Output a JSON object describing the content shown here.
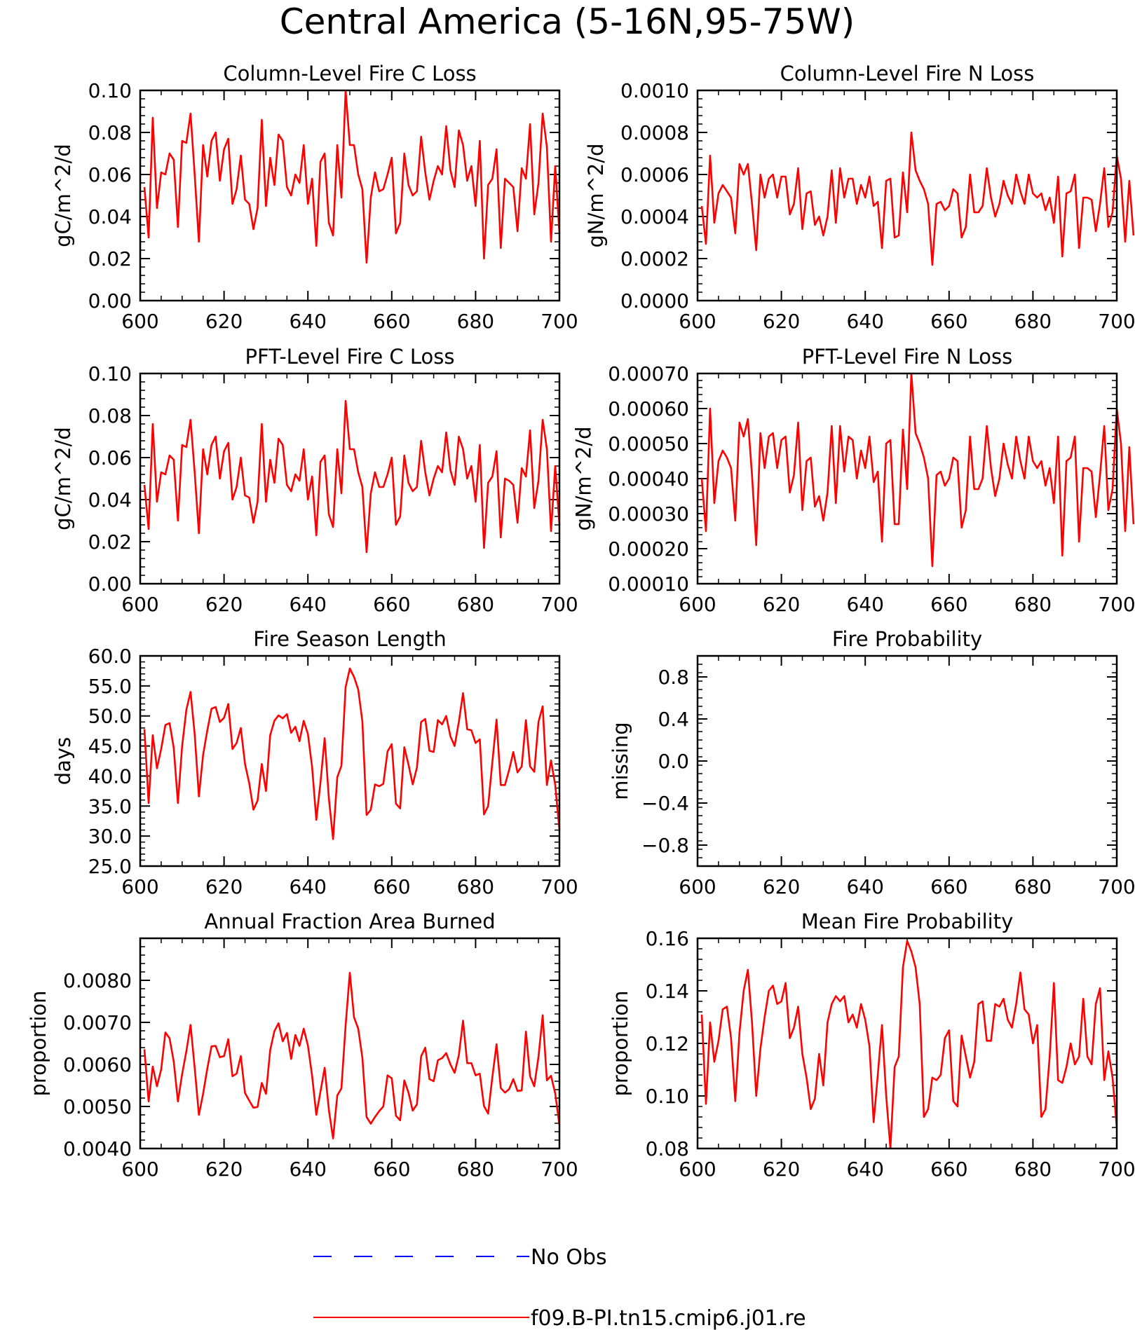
{
  "figure": {
    "title": "Central America (5-16N,95-75W)",
    "line_color": "#ff0000",
    "obs_color": "#0000ff"
  },
  "legend": [
    {
      "name": "No Obs",
      "style": "dashed",
      "color": "#0000ff"
    },
    {
      "name": "f09.B-PI.tn15.cmip6.j01.re",
      "style": "solid",
      "color": "#ff0000"
    }
  ],
  "chart_data": [
    {
      "type": "line",
      "title": "Column-Level Fire C Loss",
      "ylabel": "gC/m^2/d",
      "xlim": [
        600,
        700
      ],
      "ylim": [
        0,
        0.1
      ],
      "xticks": [
        "600",
        "620",
        "640",
        "660",
        "680",
        "700"
      ],
      "yticks": [
        "0.00",
        "0.02",
        "0.04",
        "0.06",
        "0.08",
        "0.10"
      ],
      "x_start": 601,
      "series": [
        {
          "name": "f09.B-PI.tn15.cmip6.j01.re",
          "values": [
            0.054,
            0.03,
            0.087,
            0.044,
            0.061,
            0.06,
            0.07,
            0.067,
            0.035,
            0.076,
            0.075,
            0.089,
            0.06,
            0.028,
            0.074,
            0.059,
            0.076,
            0.08,
            0.057,
            0.072,
            0.077,
            0.046,
            0.053,
            0.069,
            0.048,
            0.046,
            0.034,
            0.044,
            0.086,
            0.045,
            0.068,
            0.055,
            0.079,
            0.076,
            0.054,
            0.05,
            0.06,
            0.056,
            0.074,
            0.046,
            0.058,
            0.026,
            0.066,
            0.07,
            0.037,
            0.031,
            0.074,
            0.049,
            0.1,
            0.074,
            0.074,
            0.06,
            0.053,
            0.018,
            0.049,
            0.061,
            0.052,
            0.053,
            0.06,
            0.068,
            0.032,
            0.037,
            0.07,
            0.055,
            0.05,
            0.052,
            0.078,
            0.061,
            0.048,
            0.057,
            0.064,
            0.06,
            0.083,
            0.062,
            0.054,
            0.081,
            0.074,
            0.057,
            0.064,
            0.045,
            0.076,
            0.02,
            0.055,
            0.058,
            0.072,
            0.025,
            0.058,
            0.056,
            0.054,
            0.033,
            0.063,
            0.058,
            0.084,
            0.041,
            0.056,
            0.089,
            0.073,
            0.028,
            0.064,
            0.032
          ]
        }
      ]
    },
    {
      "type": "line",
      "title": "Column-Level Fire N Loss",
      "ylabel": "gN/m^2/d",
      "xlim": [
        600,
        700
      ],
      "ylim": [
        0,
        0.001
      ],
      "xticks": [
        "600",
        "620",
        "640",
        "660",
        "680",
        "700"
      ],
      "yticks": [
        "0.0000",
        "0.0002",
        "0.0004",
        "0.0006",
        "0.0008",
        "0.0010"
      ],
      "x_start": 601,
      "series": [
        {
          "name": "f09.B-PI.tn15.cmip6.j01.re",
          "values": [
            0.00045,
            0.00027,
            0.00069,
            0.00037,
            0.00051,
            0.00055,
            0.00052,
            0.00049,
            0.00032,
            0.00065,
            0.0006,
            0.00065,
            0.00046,
            0.00024,
            0.0006,
            0.00049,
            0.00058,
            0.0006,
            0.00049,
            0.00059,
            0.00059,
            0.00041,
            0.00046,
            0.00063,
            0.00034,
            0.00051,
            0.00052,
            0.00036,
            0.0004,
            0.00031,
            0.0004,
            0.00062,
            0.00037,
            0.00063,
            0.00049,
            0.00058,
            0.00058,
            0.00046,
            0.00055,
            0.00049,
            0.00059,
            0.00045,
            0.00047,
            0.00025,
            0.00057,
            0.00058,
            0.0003,
            0.00031,
            0.00061,
            0.00042,
            0.0008,
            0.00062,
            0.00057,
            0.00053,
            0.00046,
            0.00017,
            0.00046,
            0.00047,
            0.00043,
            0.00045,
            0.00053,
            0.00051,
            0.0003,
            0.00035,
            0.0006,
            0.00042,
            0.00042,
            0.00045,
            0.00063,
            0.00049,
            0.0004,
            0.00046,
            0.00057,
            0.0005,
            0.00046,
            0.0006,
            0.00052,
            0.00046,
            0.0006,
            0.00051,
            0.00049,
            0.00051,
            0.00043,
            0.00049,
            0.00037,
            0.00059,
            0.00021,
            0.00051,
            0.00052,
            0.0006,
            0.00025,
            0.00049,
            0.00049,
            0.00048,
            0.00033,
            0.00046,
            0.00063,
            0.00035,
            0.00042,
            0.00069,
            0.00058,
            0.00028,
            0.00057,
            0.00031
          ]
        }
      ]
    },
    {
      "type": "line",
      "title": "PFT-Level Fire C Loss",
      "ylabel": "gC/m^2/d",
      "xlim": [
        600,
        700
      ],
      "ylim": [
        0,
        0.1
      ],
      "xticks": [
        "600",
        "620",
        "640",
        "660",
        "680",
        "700"
      ],
      "yticks": [
        "0.00",
        "0.02",
        "0.04",
        "0.06",
        "0.08",
        "0.10"
      ],
      "x_start": 601,
      "series": [
        {
          "name": "f09.B-PI.tn15.cmip6.j01.re",
          "values": [
            0.047,
            0.026,
            0.076,
            0.039,
            0.053,
            0.052,
            0.061,
            0.059,
            0.03,
            0.066,
            0.065,
            0.078,
            0.053,
            0.024,
            0.064,
            0.052,
            0.066,
            0.07,
            0.05,
            0.063,
            0.067,
            0.04,
            0.046,
            0.06,
            0.042,
            0.041,
            0.029,
            0.039,
            0.076,
            0.039,
            0.059,
            0.048,
            0.069,
            0.066,
            0.047,
            0.044,
            0.052,
            0.049,
            0.064,
            0.04,
            0.051,
            0.023,
            0.058,
            0.061,
            0.033,
            0.027,
            0.064,
            0.043,
            0.087,
            0.064,
            0.064,
            0.053,
            0.046,
            0.015,
            0.043,
            0.053,
            0.046,
            0.046,
            0.052,
            0.06,
            0.028,
            0.032,
            0.061,
            0.048,
            0.044,
            0.046,
            0.068,
            0.053,
            0.042,
            0.05,
            0.056,
            0.053,
            0.072,
            0.054,
            0.047,
            0.07,
            0.064,
            0.05,
            0.056,
            0.039,
            0.066,
            0.017,
            0.048,
            0.051,
            0.063,
            0.022,
            0.05,
            0.049,
            0.047,
            0.029,
            0.055,
            0.051,
            0.073,
            0.036,
            0.049,
            0.078,
            0.064,
            0.025,
            0.056,
            0.028
          ]
        }
      ]
    },
    {
      "type": "line",
      "title": "PFT-Level Fire N Loss",
      "ylabel": "gN/m^2/d",
      "xlim": [
        600,
        700
      ],
      "ylim": [
        0.0001,
        0.0007
      ],
      "xticks": [
        "600",
        "620",
        "640",
        "660",
        "680",
        "700"
      ],
      "yticks": [
        "0.00010",
        "0.00020",
        "0.00030",
        "0.00040",
        "0.00050",
        "0.00060",
        "0.00070"
      ],
      "x_start": 601,
      "series": [
        {
          "name": "f09.B-PI.tn15.cmip6.j01.re",
          "values": [
            0.0004,
            0.00025,
            0.0006,
            0.00033,
            0.00045,
            0.00048,
            0.00046,
            0.00043,
            0.00028,
            0.00056,
            0.00052,
            0.00057,
            0.00041,
            0.00021,
            0.00053,
            0.00043,
            0.00052,
            0.00053,
            0.00043,
            0.00051,
            0.00052,
            0.00036,
            0.00041,
            0.00056,
            0.00031,
            0.00045,
            0.00046,
            0.00032,
            0.00035,
            0.00028,
            0.00036,
            0.00055,
            0.00033,
            0.00055,
            0.00042,
            0.00052,
            0.00051,
            0.0004,
            0.00048,
            0.00043,
            0.00052,
            0.00039,
            0.00042,
            0.00022,
            0.0005,
            0.00051,
            0.00027,
            0.00027,
            0.00054,
            0.00037,
            0.0007,
            0.00053,
            0.0005,
            0.00046,
            0.0004,
            0.00015,
            0.00041,
            0.00042,
            0.00038,
            0.0004,
            0.00046,
            0.00045,
            0.00026,
            0.00031,
            0.00052,
            0.00037,
            0.00037,
            0.0004,
            0.00055,
            0.00043,
            0.00035,
            0.0004,
            0.0005,
            0.00044,
            0.0004,
            0.00052,
            0.00045,
            0.0004,
            0.00052,
            0.00045,
            0.00043,
            0.00045,
            0.00038,
            0.00043,
            0.00033,
            0.00052,
            0.00018,
            0.00045,
            0.00046,
            0.00052,
            0.00022,
            0.00043,
            0.00043,
            0.00042,
            0.00029,
            0.00041,
            0.00055,
            0.00031,
            0.00037,
            0.0006,
            0.0005,
            0.00025,
            0.00049,
            0.00027
          ]
        }
      ]
    },
    {
      "type": "line",
      "title": "Fire Season Length",
      "ylabel": "days",
      "xlim": [
        600,
        700
      ],
      "ylim": [
        25,
        60
      ],
      "xticks": [
        "600",
        "620",
        "640",
        "660",
        "680",
        "700"
      ],
      "yticks": [
        "25.0",
        "30.0",
        "35.0",
        "40.0",
        "45.0",
        "50.0",
        "55.0",
        "60.0"
      ],
      "x_start": 601,
      "series": [
        {
          "name": "f09.B-PI.tn15.cmip6.j01.re",
          "values": [
            47.8,
            35.5,
            46.8,
            41.3,
            44.5,
            48.5,
            48.8,
            44.7,
            35.5,
            45.0,
            51.0,
            54.0,
            47.0,
            36.6,
            43.5,
            47.6,
            51.2,
            51.5,
            49.0,
            49.7,
            52.0,
            44.5,
            45.5,
            48.0,
            42.0,
            38.8,
            34.4,
            35.9,
            42.0,
            37.5,
            46.8,
            49.2,
            50.1,
            49.6,
            50.3,
            47.2,
            48.2,
            45.8,
            49.2,
            47.0,
            41.5,
            32.7,
            38.9,
            46.3,
            36.3,
            29.5,
            39.8,
            41.7,
            54.8,
            57.9,
            56.5,
            54.4,
            49.1,
            33.5,
            34.4,
            38.6,
            38.3,
            38.7,
            44.1,
            45.3,
            35.4,
            34.6,
            44.8,
            41.9,
            38.6,
            41.4,
            49.0,
            49.5,
            44.2,
            44.0,
            49.3,
            48.6,
            50.0,
            46.6,
            45.0,
            49.0,
            53.8,
            47.8,
            47.6,
            45.5,
            46.1,
            33.6,
            35.0,
            42.3,
            49.4,
            38.5,
            38.5,
            41.0,
            44.0,
            40.6,
            41.6,
            49.3,
            41.6,
            40.7,
            49.0,
            51.6,
            38.5,
            42.6,
            38.5,
            31.0
          ]
        }
      ]
    },
    {
      "type": "line",
      "title": "Fire Probability",
      "ylabel": "missing",
      "xlim": [
        600,
        700
      ],
      "ylim": [
        -1,
        1
      ],
      "xticks": [
        "600",
        "620",
        "640",
        "660",
        "680",
        "700"
      ],
      "yticks": [
        "−0.8",
        "−0.4",
        "0.0",
        "0.4",
        "0.8"
      ],
      "x_start": 601,
      "series": []
    },
    {
      "type": "line",
      "title": "Annual Fraction Area Burned",
      "ylabel": "proportion",
      "xlim": [
        600,
        700
      ],
      "ylim": [
        0.004,
        0.009
      ],
      "xticks": [
        "600",
        "620",
        "640",
        "660",
        "680",
        "700"
      ],
      "yticks": [
        "0.0040",
        "0.0050",
        "0.0060",
        "0.0070",
        "0.0080"
      ],
      "x_start": 601,
      "series": [
        {
          "name": "f09.B-PI.tn15.cmip6.j01.re",
          "values": [
            0.00636,
            0.00512,
            0.00595,
            0.00548,
            0.00588,
            0.00676,
            0.00662,
            0.00607,
            0.00512,
            0.00577,
            0.00631,
            0.00694,
            0.00592,
            0.0048,
            0.0053,
            0.0059,
            0.00643,
            0.00644,
            0.00617,
            0.0062,
            0.0066,
            0.00572,
            0.00578,
            0.0062,
            0.00532,
            0.00514,
            0.00497,
            0.00499,
            0.00556,
            0.0053,
            0.00634,
            0.00679,
            0.00698,
            0.00655,
            0.00675,
            0.00613,
            0.0067,
            0.00644,
            0.00685,
            0.00645,
            0.00573,
            0.0048,
            0.00535,
            0.00592,
            0.00492,
            0.00424,
            0.00526,
            0.00543,
            0.00693,
            0.00818,
            0.00712,
            0.00685,
            0.00616,
            0.00475,
            0.00459,
            0.00475,
            0.00489,
            0.005,
            0.00574,
            0.00567,
            0.00478,
            0.00467,
            0.00562,
            0.00533,
            0.0049,
            0.00505,
            0.00619,
            0.0064,
            0.00565,
            0.0056,
            0.0061,
            0.00615,
            0.00627,
            0.006,
            0.0058,
            0.00622,
            0.00704,
            0.00603,
            0.00603,
            0.00574,
            0.00578,
            0.00501,
            0.00483,
            0.0057,
            0.00648,
            0.00544,
            0.00533,
            0.00541,
            0.00565,
            0.00537,
            0.00538,
            0.00678,
            0.00572,
            0.00548,
            0.00618,
            0.00717,
            0.00562,
            0.00573,
            0.00531,
            0.00455
          ]
        }
      ]
    },
    {
      "type": "line",
      "title": "Mean Fire Probability",
      "ylabel": "proportion",
      "xlim": [
        600,
        700
      ],
      "ylim": [
        0.08,
        0.16
      ],
      "xticks": [
        "600",
        "620",
        "640",
        "660",
        "680",
        "700"
      ],
      "yticks": [
        "0.08",
        "0.10",
        "0.12",
        "0.14",
        "0.16"
      ],
      "x_start": 601,
      "series": [
        {
          "name": "f09.B-PI.tn15.cmip6.j01.re",
          "values": [
            0.131,
            0.097,
            0.128,
            0.113,
            0.121,
            0.133,
            0.134,
            0.122,
            0.098,
            0.124,
            0.14,
            0.148,
            0.128,
            0.1,
            0.118,
            0.13,
            0.14,
            0.142,
            0.135,
            0.136,
            0.143,
            0.122,
            0.126,
            0.134,
            0.116,
            0.107,
            0.095,
            0.099,
            0.116,
            0.104,
            0.128,
            0.135,
            0.138,
            0.136,
            0.138,
            0.128,
            0.131,
            0.126,
            0.135,
            0.129,
            0.119,
            0.09,
            0.108,
            0.127,
            0.1,
            0.08,
            0.111,
            0.115,
            0.149,
            0.159,
            0.155,
            0.149,
            0.135,
            0.092,
            0.095,
            0.107,
            0.106,
            0.108,
            0.122,
            0.125,
            0.098,
            0.096,
            0.123,
            0.115,
            0.107,
            0.113,
            0.135,
            0.136,
            0.121,
            0.121,
            0.135,
            0.134,
            0.137,
            0.129,
            0.126,
            0.135,
            0.147,
            0.133,
            0.131,
            0.12,
            0.127,
            0.092,
            0.095,
            0.115,
            0.143,
            0.106,
            0.105,
            0.111,
            0.12,
            0.112,
            0.115,
            0.137,
            0.115,
            0.112,
            0.135,
            0.141,
            0.106,
            0.117,
            0.107,
            0.088
          ]
        }
      ]
    }
  ]
}
